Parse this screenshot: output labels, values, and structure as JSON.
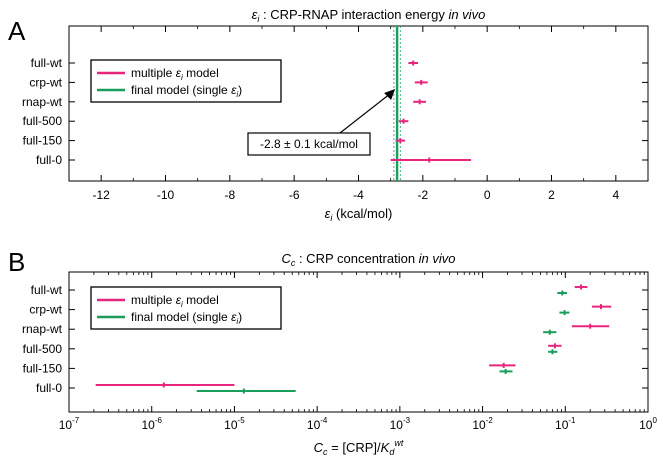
{
  "colors": {
    "multiple": "#e8267e",
    "final": "#1a9e5c",
    "axis": "#000000"
  },
  "chart_data": [
    {
      "type": "scatter",
      "panel": "A",
      "title": "ε_i : CRP-RNAP interaction energy in vivo",
      "title_parts": {
        "symbol": "ε",
        "sub": "i",
        "rest": " : CRP-RNAP interaction energy ",
        "italic": "in vivo"
      },
      "xlabel": "ε_i (kcal/mol)",
      "xlabel_parts": {
        "symbol": "ε",
        "sub": "i",
        "rest": " (kcal/mol)"
      },
      "scale": "linear",
      "xlim": [
        -13,
        5
      ],
      "xticks": [
        -12,
        -10,
        -8,
        -6,
        -4,
        -2,
        0,
        2,
        4
      ],
      "xtick_labels": [
        "-12",
        "-10",
        "-8",
        "-6",
        "-4",
        "-2",
        "0",
        "2",
        "4"
      ],
      "categories": [
        "full-wt",
        "crp-wt",
        "rnap-wt",
        "full-500",
        "full-150",
        "full-0"
      ],
      "legend": {
        "placement": "top-left",
        "entries": [
          {
            "prefix": "multiple ",
            "symbol": "ε",
            "sub": "i",
            "suffix": " model",
            "color_key": "multiple"
          },
          {
            "prefix": "final model (single ",
            "symbol": "ε",
            "sub": "i",
            "suffix": ")",
            "color_key": "final"
          }
        ]
      },
      "series": [
        {
          "name": "multiple ε_i model",
          "points": [
            {
              "category": "full-wt",
              "x": -2.3,
              "lo": -2.45,
              "hi": -2.15
            },
            {
              "category": "crp-wt",
              "x": -2.05,
              "lo": -2.25,
              "hi": -1.85
            },
            {
              "category": "rnap-wt",
              "x": -2.1,
              "lo": -2.3,
              "hi": -1.9
            },
            {
              "category": "full-500",
              "x": -2.6,
              "lo": -2.75,
              "hi": -2.45
            },
            {
              "category": "full-150",
              "x": -2.7,
              "lo": -2.85,
              "hi": -2.55
            },
            {
              "category": "full-0",
              "x": -1.8,
              "lo": -3.0,
              "hi": -0.5
            }
          ]
        }
      ],
      "final_line": {
        "value": -2.8,
        "lo": -2.9,
        "hi": -2.7
      },
      "annotation": "-2.8 ± 0.1 kcal/mol"
    },
    {
      "type": "scatter",
      "panel": "B",
      "title": "C_c : CRP concentration in vivo",
      "title_parts": {
        "symbol": "C",
        "sub": "c",
        "rest": " : CRP concentration ",
        "italic": "in vivo"
      },
      "xlabel": "C_c = [CRP]/K_d^wt",
      "xlabel_parts": {
        "symbol": "C",
        "sub": "c",
        "mid": " = [CRP]/",
        "k": "K",
        "ksub": "d",
        "ksup": "wt"
      },
      "scale": "log",
      "xlim_exp": [
        -7,
        0
      ],
      "xticks_exp": [
        -7,
        -6,
        -5,
        -4,
        -3,
        -2,
        -1,
        0
      ],
      "xtick_labels": [
        "10",
        "10",
        "10",
        "10",
        "10",
        "10",
        "10",
        "10"
      ],
      "xtick_exponents": [
        "-7",
        "-6",
        "-5",
        "-4",
        "-3",
        "-2",
        "-1",
        "0"
      ],
      "xlim": [
        1e-07,
        1
      ],
      "categories": [
        "full-wt",
        "crp-wt",
        "rnap-wt",
        "full-500",
        "full-150",
        "full-0"
      ],
      "legend": {
        "placement": "top-left",
        "entries": [
          {
            "prefix": "multiple ",
            "symbol": "ε",
            "sub": "i",
            "suffix": " model",
            "color_key": "multiple"
          },
          {
            "prefix": "final model (single ",
            "symbol": "ε",
            "sub": "i",
            "suffix": ")",
            "color_key": "final"
          }
        ]
      },
      "series": [
        {
          "name": "multiple ε_i model",
          "points": [
            {
              "category": "full-wt",
              "x": 0.155,
              "lo": 0.13,
              "hi": 0.185
            },
            {
              "category": "crp-wt",
              "x": 0.27,
              "lo": 0.21,
              "hi": 0.36
            },
            {
              "category": "rnap-wt",
              "x": 0.2,
              "lo": 0.12,
              "hi": 0.34
            },
            {
              "category": "full-500",
              "x": 0.075,
              "lo": 0.062,
              "hi": 0.09
            },
            {
              "category": "full-150",
              "x": 0.018,
              "lo": 0.012,
              "hi": 0.025
            },
            {
              "category": "full-0",
              "x": 1.4e-06,
              "lo": 2.1e-07,
              "hi": 1e-05
            }
          ]
        },
        {
          "name": "final model (single ε_i)",
          "points": [
            {
              "category": "full-wt",
              "x": 0.092,
              "lo": 0.08,
              "hi": 0.105
            },
            {
              "category": "crp-wt",
              "x": 0.098,
              "lo": 0.085,
              "hi": 0.112
            },
            {
              "category": "rnap-wt",
              "x": 0.065,
              "lo": 0.054,
              "hi": 0.078
            },
            {
              "category": "full-500",
              "x": 0.07,
              "lo": 0.062,
              "hi": 0.08
            },
            {
              "category": "full-150",
              "x": 0.019,
              "lo": 0.016,
              "hi": 0.023
            },
            {
              "category": "full-0",
              "x": 1.3e-05,
              "lo": 3.5e-06,
              "hi": 5.5e-05
            }
          ]
        }
      ]
    }
  ]
}
